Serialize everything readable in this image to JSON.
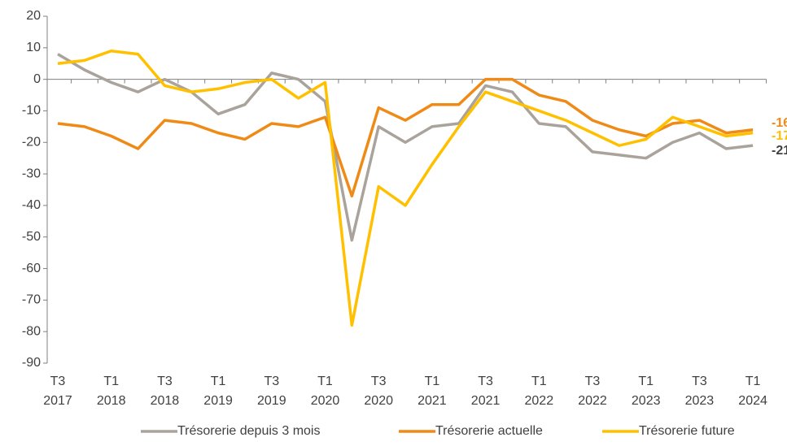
{
  "chart_data": {
    "type": "line",
    "categories": [
      "T3 2017",
      null,
      "T1 2018",
      null,
      "T3 2018",
      null,
      "T1 2019",
      null,
      "T3 2019",
      null,
      "T1 2020",
      null,
      "T3 2020",
      null,
      "T1 2021",
      null,
      "T3 2021",
      null,
      "T1 2022",
      null,
      "T3 2022",
      null,
      "T1 2023",
      null,
      "T3 2023",
      null,
      "T1 2024"
    ],
    "series": [
      {
        "name": "Trésorerie depuis 3 mois",
        "color": "#aaa39c",
        "values": [
          8,
          3,
          -1,
          -4,
          0,
          -4,
          -11,
          -8,
          2,
          0,
          -7,
          -51,
          -15,
          -20,
          -15,
          -14,
          -2,
          -4,
          -14,
          -15,
          -23,
          -24,
          -25,
          -20,
          -17,
          -22,
          -21
        ]
      },
      {
        "name": "Trésorerie actuelle",
        "color": "#f08a16",
        "values": [
          -14,
          -15,
          -18,
          -22,
          -13,
          -14,
          -17,
          -19,
          -14,
          -15,
          -12,
          -37,
          -9,
          -13,
          -8,
          -8,
          0,
          0,
          -5,
          -7,
          -13,
          -16,
          -18,
          -14,
          -13,
          -17,
          -16
        ]
      },
      {
        "name": "Trésorerie future",
        "color": "#ffc000",
        "values": [
          5,
          6,
          9,
          8,
          -2,
          -4,
          -3,
          -1,
          0,
          -6,
          -1,
          -78,
          -34,
          -40,
          -27,
          -15,
          -4,
          -7,
          -10,
          -13,
          -17,
          -21,
          -19,
          -12,
          -15,
          -18,
          -17
        ]
      }
    ],
    "ylim": [
      -90,
      20
    ],
    "yticks": [
      -90,
      -80,
      -70,
      -60,
      -50,
      -40,
      -30,
      -20,
      -10,
      0,
      10,
      20
    ],
    "grid": false,
    "legend": "bottom"
  }
}
